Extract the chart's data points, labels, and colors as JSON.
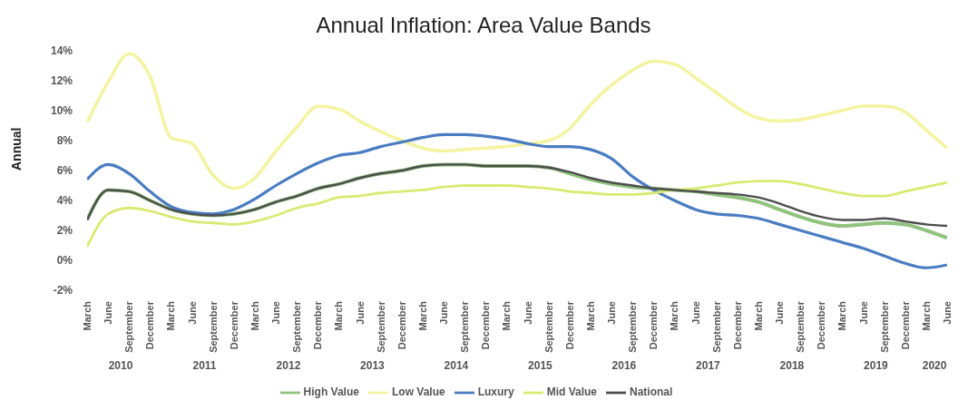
{
  "chart_data": {
    "type": "line",
    "title": "Annual Inflation: Area Value Bands",
    "ylabel": "Annual",
    "categories": [
      "March",
      "June",
      "September",
      "December",
      "March",
      "June",
      "September",
      "December",
      "March",
      "June",
      "September",
      "December",
      "March",
      "June",
      "September",
      "December",
      "March",
      "June",
      "September",
      "December",
      "March",
      "June",
      "September",
      "December",
      "March",
      "June",
      "September",
      "December",
      "March",
      "June",
      "September",
      "December",
      "March",
      "June",
      "September",
      "December",
      "March",
      "June",
      "September",
      "December",
      "March",
      "June"
    ],
    "annotations": [
      "2010",
      "2011",
      "2012",
      "2013",
      "2014",
      "2015",
      "2016",
      "2017",
      "2018",
      "2019",
      "2020"
    ],
    "series": [
      {
        "name": "High Value",
        "color": "#8fc27c",
        "values": [
          2.7,
          4.7,
          4.6,
          4.0,
          3.4,
          3.1,
          3.0,
          3.1,
          3.4,
          3.9,
          4.3,
          4.8,
          5.1,
          5.5,
          5.8,
          6.0,
          6.3,
          6.4,
          6.4,
          6.3,
          6.3,
          6.3,
          6.2,
          5.8,
          5.4,
          5.1,
          4.9,
          4.8,
          4.7,
          4.6,
          4.4,
          4.2,
          3.9,
          3.4,
          2.9,
          2.5,
          2.3,
          2.4,
          2.5,
          2.4,
          2.0,
          1.5
        ]
      },
      {
        "name": "Low Value",
        "color": "#f4f3a2",
        "values": [
          9.2,
          11.9,
          13.8,
          12.3,
          8.2,
          7.8,
          5.7,
          4.8,
          5.5,
          7.3,
          8.9,
          10.3,
          10.1,
          9.3,
          8.6,
          8.0,
          7.5,
          7.3,
          7.4,
          7.5,
          7.6,
          7.8,
          8.0,
          8.8,
          10.4,
          11.7,
          12.7,
          13.3,
          13.1,
          12.2,
          11.2,
          10.2,
          9.5,
          9.3,
          9.4,
          9.7,
          10.0,
          10.3,
          10.3,
          9.9,
          8.7,
          7.5
        ]
      },
      {
        "name": "Luxury",
        "color": "#4a7cc2",
        "values": [
          5.4,
          6.4,
          5.8,
          4.6,
          3.6,
          3.2,
          3.1,
          3.4,
          4.1,
          5.0,
          5.8,
          6.5,
          7.0,
          7.2,
          7.6,
          7.9,
          8.2,
          8.4,
          8.4,
          8.3,
          8.1,
          7.8,
          7.6,
          7.6,
          7.4,
          6.8,
          5.6,
          4.7,
          4.0,
          3.4,
          3.1,
          3.0,
          2.8,
          2.4,
          2.0,
          1.6,
          1.2,
          0.8,
          0.3,
          -0.2,
          -0.5,
          -0.3
        ]
      },
      {
        "name": "Mid Value",
        "color": "#d9ea72",
        "values": [
          0.9,
          3.1,
          3.5,
          3.3,
          2.9,
          2.6,
          2.5,
          2.4,
          2.6,
          3.0,
          3.5,
          3.8,
          4.2,
          4.3,
          4.5,
          4.6,
          4.7,
          4.9,
          5.0,
          5.0,
          5.0,
          4.9,
          4.8,
          4.6,
          4.5,
          4.4,
          4.4,
          4.5,
          4.7,
          4.8,
          5.0,
          5.2,
          5.3,
          5.3,
          5.1,
          4.8,
          4.5,
          4.3,
          4.3,
          4.6,
          4.9,
          5.2
        ]
      },
      {
        "name": "National",
        "color": "#4d4d4d",
        "values": [
          2.7,
          4.7,
          4.6,
          4.0,
          3.4,
          3.1,
          3.0,
          3.1,
          3.4,
          3.9,
          4.3,
          4.8,
          5.1,
          5.5,
          5.8,
          6.0,
          6.3,
          6.4,
          6.4,
          6.3,
          6.3,
          6.3,
          6.2,
          5.9,
          5.5,
          5.2,
          5.0,
          4.8,
          4.7,
          4.6,
          4.5,
          4.4,
          4.2,
          3.8,
          3.3,
          2.9,
          2.7,
          2.7,
          2.8,
          2.6,
          2.4,
          2.3
        ]
      }
    ],
    "ylim": [
      -2,
      14
    ],
    "yticks": [
      {
        "value": -2,
        "label": "-2%"
      },
      {
        "value": 0,
        "label": "0%"
      },
      {
        "value": 2,
        "label": "2%"
      },
      {
        "value": 4,
        "label": "4%"
      },
      {
        "value": 6,
        "label": "6%"
      },
      {
        "value": 8,
        "label": "8%"
      },
      {
        "value": 10,
        "label": "10%"
      },
      {
        "value": 12,
        "label": "12%"
      },
      {
        "value": 14,
        "label": "14%"
      }
    ],
    "grid": false,
    "legend": "bottom",
    "marker": "none",
    "line_style": "solid"
  }
}
